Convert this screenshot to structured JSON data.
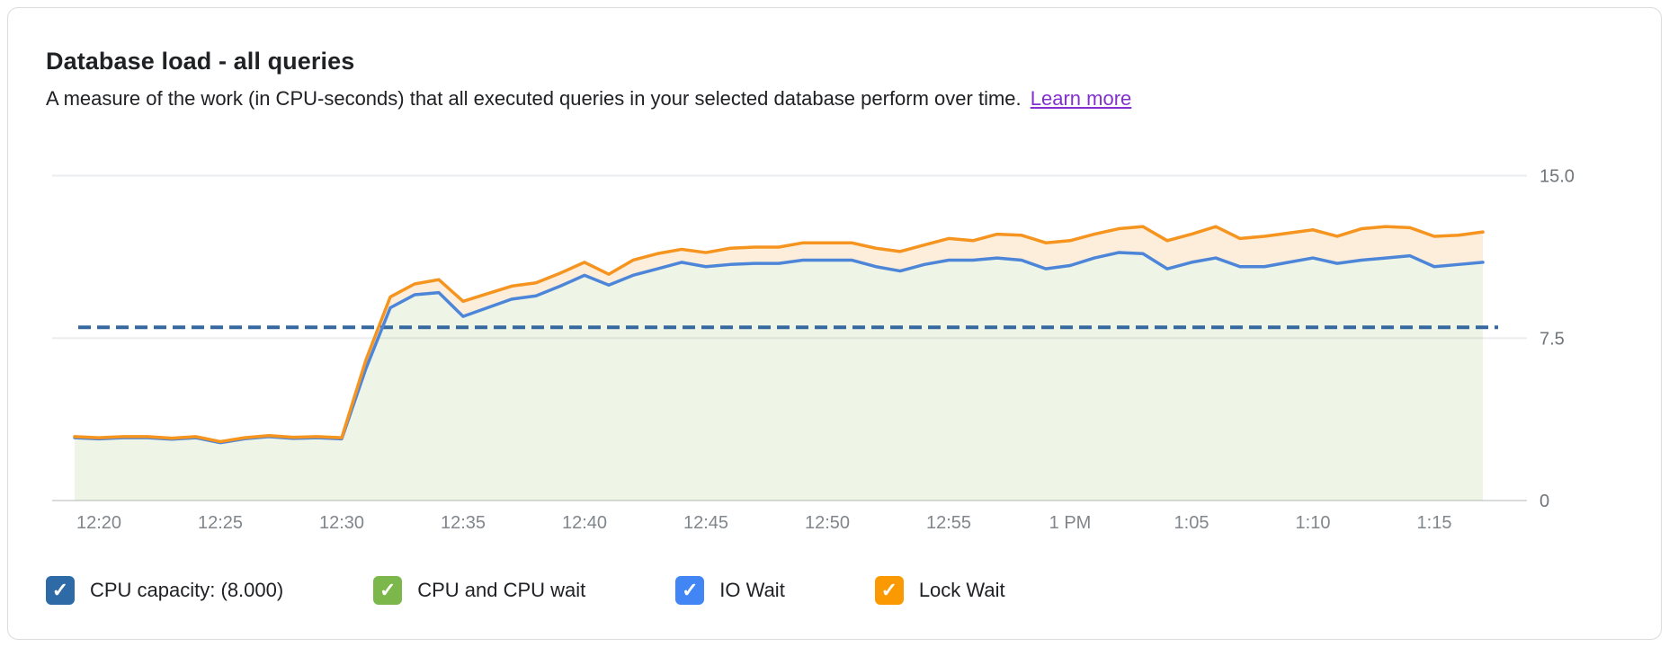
{
  "card": {
    "title": "Database load - all queries",
    "description": "A measure of the work (in CPU-seconds) that all executed queries in your selected database perform over time.",
    "learn_more_label": "Learn more"
  },
  "legend": {
    "check_glyph": "✓",
    "items": [
      {
        "label": "CPU capacity: (8.000)",
        "color": "#2e6ba6",
        "checked": true
      },
      {
        "label": "CPU and CPU wait",
        "color": "#7bb74a",
        "checked": true
      },
      {
        "label": "IO Wait",
        "color": "#4286f5",
        "checked": true
      },
      {
        "label": "Lock Wait",
        "color": "#fb9902",
        "checked": true
      }
    ]
  },
  "chart_data": {
    "type": "area",
    "title": "Database load - all queries",
    "x_unit": "minutes_after_12_pm",
    "ylim": [
      0,
      15
    ],
    "grid": true,
    "legend_position": "bottom",
    "y_ticks": [
      {
        "label": "15.0",
        "value": 15
      },
      {
        "label": "7.5",
        "value": 7.5
      },
      {
        "label": "0",
        "value": 0
      }
    ],
    "x_ticks": [
      {
        "label": "12:20",
        "t": 20
      },
      {
        "label": "12:25",
        "t": 25
      },
      {
        "label": "12:30",
        "t": 30
      },
      {
        "label": "12:35",
        "t": 35
      },
      {
        "label": "12:40",
        "t": 40
      },
      {
        "label": "12:45",
        "t": 45
      },
      {
        "label": "12:50",
        "t": 50
      },
      {
        "label": "12:55",
        "t": 55
      },
      {
        "label": "1 PM",
        "t": 60
      },
      {
        "label": "1:05",
        "t": 65
      },
      {
        "label": "1:10",
        "t": 70
      },
      {
        "label": "1:15",
        "t": 75
      }
    ],
    "capacity_line": {
      "label": "CPU capacity",
      "value": 8.0,
      "color": "#35689f",
      "style": "dashed"
    },
    "x": [
      19,
      20,
      21,
      22,
      23,
      24,
      25,
      26,
      27,
      28,
      29,
      30,
      31,
      32,
      33,
      34,
      35,
      36,
      37,
      38,
      39,
      40,
      41,
      42,
      43,
      44,
      45,
      46,
      47,
      48,
      49,
      50,
      51,
      52,
      53,
      54,
      55,
      56,
      57,
      58,
      59,
      60,
      61,
      62,
      63,
      64,
      65,
      66,
      67,
      68,
      69,
      70,
      71,
      72,
      73,
      74,
      75,
      76,
      77
    ],
    "series": [
      {
        "name": "IO Wait (stacked line, green CPU area fills beneath it)",
        "color": "#4d86d8",
        "fill": "rgba(124,179,66,0.13)",
        "values": [
          2.9,
          2.85,
          2.9,
          2.9,
          2.83,
          2.9,
          2.67,
          2.85,
          2.95,
          2.87,
          2.9,
          2.85,
          6.1,
          8.9,
          9.5,
          9.6,
          8.5,
          8.9,
          9.3,
          9.45,
          9.9,
          10.4,
          9.95,
          10.4,
          10.7,
          11.0,
          10.8,
          10.9,
          10.95,
          10.95,
          11.1,
          11.1,
          11.1,
          10.8,
          10.6,
          10.9,
          11.1,
          11.1,
          11.2,
          11.1,
          10.7,
          10.85,
          11.2,
          11.45,
          11.4,
          10.7,
          11.0,
          11.2,
          10.8,
          10.8,
          11.0,
          11.2,
          10.95,
          11.1,
          11.2,
          11.3,
          10.8,
          10.9,
          11.0
        ]
      },
      {
        "name": "Lock Wait (stacked line, pale orange band above IO Wait)",
        "color": "#f5941f",
        "fill": "rgba(245,148,31,0.16)",
        "values": [
          2.95,
          2.9,
          2.95,
          2.95,
          2.88,
          2.95,
          2.72,
          2.9,
          3.0,
          2.92,
          2.95,
          2.9,
          6.5,
          9.4,
          10.0,
          10.2,
          9.2,
          9.55,
          9.9,
          10.05,
          10.5,
          11.0,
          10.45,
          11.1,
          11.4,
          11.6,
          11.45,
          11.65,
          11.7,
          11.7,
          11.9,
          11.9,
          11.9,
          11.65,
          11.5,
          11.8,
          12.1,
          12.0,
          12.3,
          12.25,
          11.9,
          12.0,
          12.3,
          12.55,
          12.65,
          12.0,
          12.3,
          12.65,
          12.1,
          12.2,
          12.35,
          12.5,
          12.2,
          12.55,
          12.65,
          12.6,
          12.2,
          12.25,
          12.4
        ]
      }
    ]
  }
}
